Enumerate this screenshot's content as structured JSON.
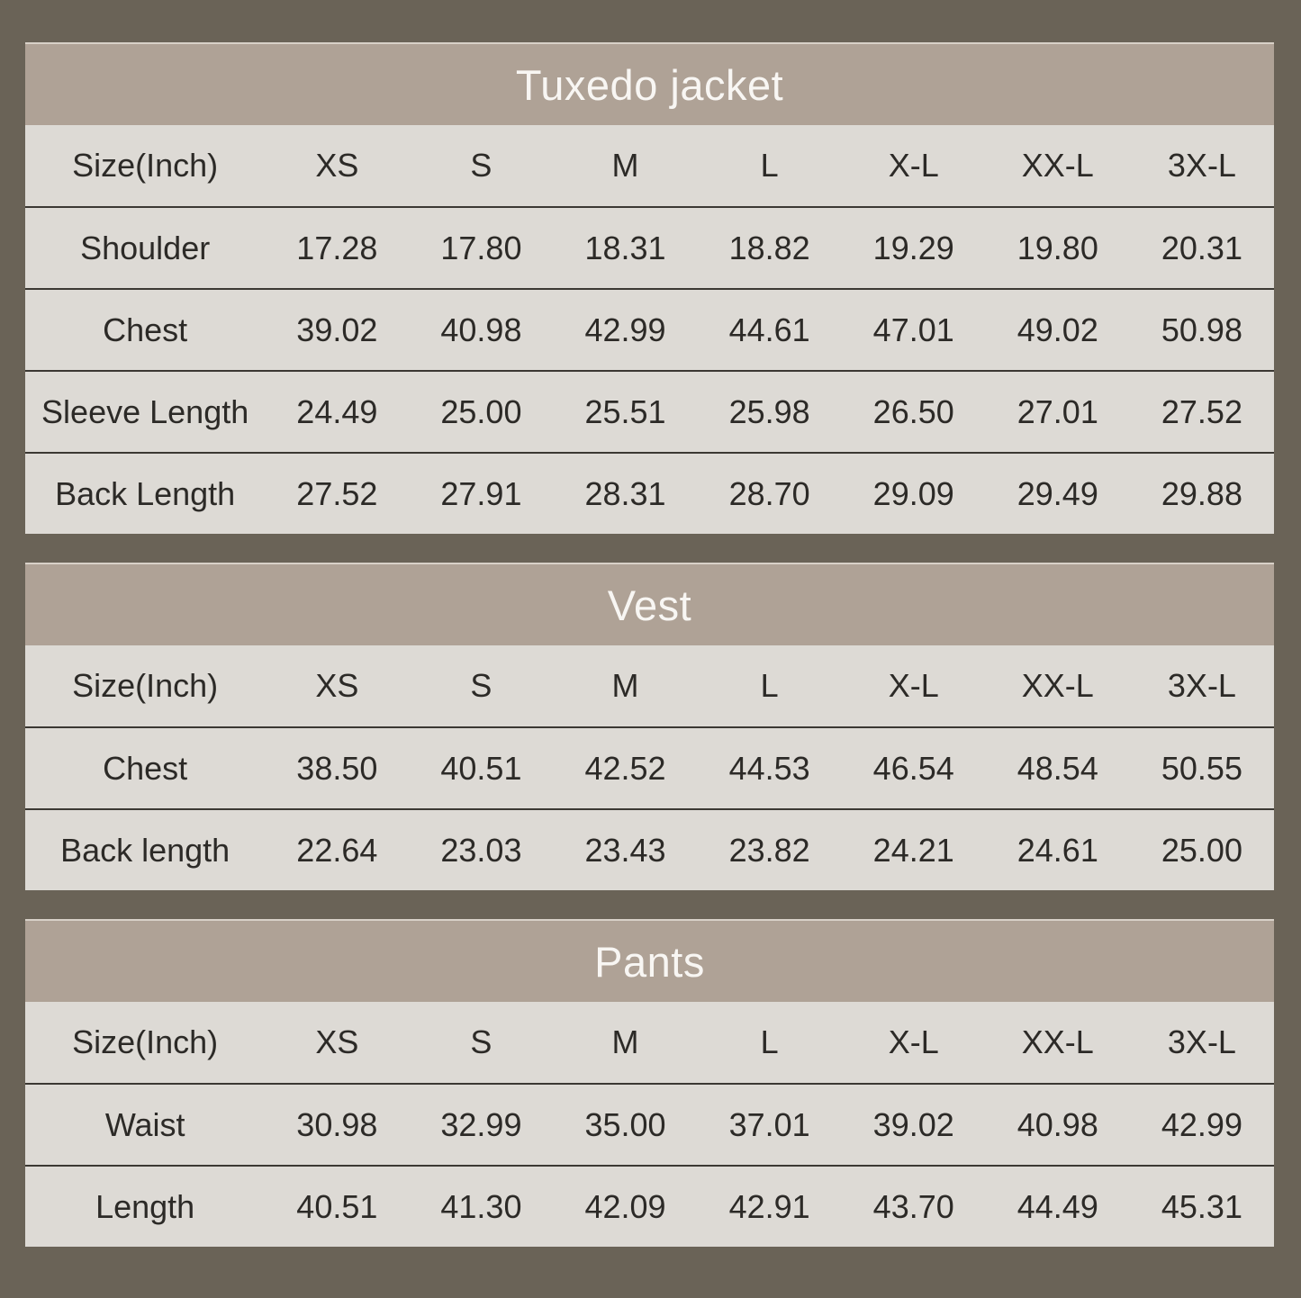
{
  "colors": {
    "frame_bg": "#6A6357",
    "panel_bg": "#DDDAD5",
    "title_bg": "#AFA296",
    "title_text": "#F8F6F3",
    "body_text": "#2C2A27",
    "row_divider": "#3B3833"
  },
  "chart_data": [
    {
      "type": "table",
      "title": "Tuxedo jacket",
      "unit_label": "Size(Inch)",
      "sizes": [
        "XS",
        "S",
        "M",
        "L",
        "X-L",
        "XX-L",
        "3X-L"
      ],
      "rows": [
        {
          "label": "Shoulder",
          "values": [
            "17.28",
            "17.80",
            "18.31",
            "18.82",
            "19.29",
            "19.80",
            "20.31"
          ]
        },
        {
          "label": "Chest",
          "values": [
            "39.02",
            "40.98",
            "42.99",
            "44.61",
            "47.01",
            "49.02",
            "50.98"
          ]
        },
        {
          "label": "Sleeve Length",
          "values": [
            "24.49",
            "25.00",
            "25.51",
            "25.98",
            "26.50",
            "27.01",
            "27.52"
          ]
        },
        {
          "label": "Back Length",
          "values": [
            "27.52",
            "27.91",
            "28.31",
            "28.70",
            "29.09",
            "29.49",
            "29.88"
          ]
        }
      ]
    },
    {
      "type": "table",
      "title": "Vest",
      "unit_label": "Size(Inch)",
      "sizes": [
        "XS",
        "S",
        "M",
        "L",
        "X-L",
        "XX-L",
        "3X-L"
      ],
      "rows": [
        {
          "label": "Chest",
          "values": [
            "38.50",
            "40.51",
            "42.52",
            "44.53",
            "46.54",
            "48.54",
            "50.55"
          ]
        },
        {
          "label": "Back length",
          "values": [
            "22.64",
            "23.03",
            "23.43",
            "23.82",
            "24.21",
            "24.61",
            "25.00"
          ]
        }
      ]
    },
    {
      "type": "table",
      "title": "Pants",
      "unit_label": "Size(Inch)",
      "sizes": [
        "XS",
        "S",
        "M",
        "L",
        "X-L",
        "XX-L",
        "3X-L"
      ],
      "rows": [
        {
          "label": "Waist",
          "values": [
            "30.98",
            "32.99",
            "35.00",
            "37.01",
            "39.02",
            "40.98",
            "42.99"
          ]
        },
        {
          "label": "Length",
          "values": [
            "40.51",
            "41.30",
            "42.09",
            "42.91",
            "43.70",
            "44.49",
            "45.31"
          ]
        }
      ]
    }
  ]
}
